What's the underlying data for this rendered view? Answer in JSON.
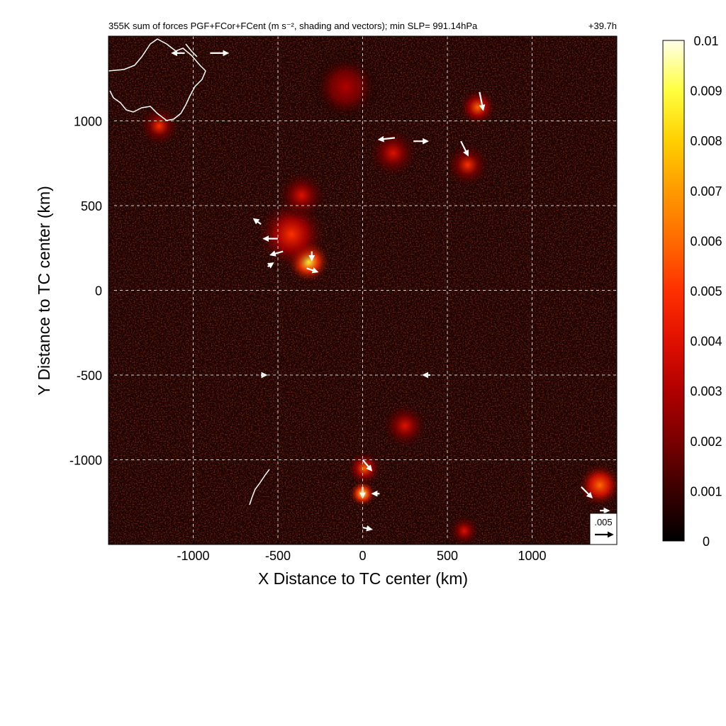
{
  "chart_data": {
    "type": "heatmap",
    "title": "355K sum of forces PGF+FCor+FCent (m s⁻², shading and vectors); min SLP= 991.14hPa",
    "time_label": "+39.7h",
    "xlabel": "X Distance to TC center (km)",
    "ylabel": "Y Distance to TC center (km)",
    "xlim": [
      -1500,
      1500
    ],
    "ylim": [
      -1500,
      1500
    ],
    "x_ticks": [
      -1000,
      -500,
      0,
      500,
      1000
    ],
    "y_ticks": [
      -1000,
      -500,
      0,
      500,
      1000
    ],
    "x_tick_labels": [
      "-1000",
      "-500",
      "0",
      "500",
      "1000"
    ],
    "y_tick_labels": [
      "-1000",
      "-500",
      "0",
      "500",
      "1000"
    ],
    "grid": "dashed",
    "colorbar": {
      "range": [
        0,
        0.01
      ],
      "tick_values": [
        0,
        0.001,
        0.002,
        0.003,
        0.004,
        0.005,
        0.006,
        0.007,
        0.008,
        0.009,
        0.01
      ],
      "tick_labels": [
        "0",
        "0.001",
        "0.002",
        "0.003",
        "0.004",
        "0.005",
        "0.006",
        "0.007",
        "0.008",
        "0.009",
        "0.01"
      ],
      "colors": [
        "#000000",
        "#3a0000",
        "#7a0000",
        "#b00000",
        "#e01000",
        "#ff3000",
        "#ff6a00",
        "#ff9a00",
        "#ffd000",
        "#ffff40",
        "#ffffe8"
      ]
    },
    "reference_vector": {
      "label": ".005",
      "value": 0.005
    },
    "hotspots": [
      {
        "x": -320,
        "y": 170,
        "intensity": 0.0085,
        "radius_km": 130
      },
      {
        "x": -420,
        "y": 330,
        "intensity": 0.005,
        "radius_km": 200
      },
      {
        "x": -360,
        "y": 560,
        "intensity": 0.004,
        "radius_km": 140
      },
      {
        "x": 0,
        "y": -1200,
        "intensity": 0.0085,
        "radius_km": 80
      },
      {
        "x": 10,
        "y": -1050,
        "intensity": 0.006,
        "radius_km": 100
      },
      {
        "x": 680,
        "y": 1080,
        "intensity": 0.006,
        "radius_km": 110
      },
      {
        "x": 620,
        "y": 740,
        "intensity": 0.0045,
        "radius_km": 130
      },
      {
        "x": 180,
        "y": 810,
        "intensity": 0.004,
        "radius_km": 140
      },
      {
        "x": 1400,
        "y": -1150,
        "intensity": 0.0065,
        "radius_km": 130
      },
      {
        "x": -1200,
        "y": 970,
        "intensity": 0.0045,
        "radius_km": 120
      },
      {
        "x": 250,
        "y": -800,
        "intensity": 0.0035,
        "radius_km": 130
      },
      {
        "x": 600,
        "y": -1420,
        "intensity": 0.004,
        "radius_km": 90
      },
      {
        "x": -100,
        "y": 1200,
        "intensity": 0.003,
        "radius_km": 200
      }
    ],
    "vectors": [
      {
        "x": -900,
        "y": 1400,
        "u": 0.005,
        "v": 0.0
      },
      {
        "x": -1050,
        "y": 1400,
        "u": -0.0035,
        "v": 0.0
      },
      {
        "x": 190,
        "y": 900,
        "u": -0.0045,
        "v": -0.0005
      },
      {
        "x": 300,
        "y": 880,
        "u": 0.004,
        "v": 0.0
      },
      {
        "x": 580,
        "y": 880,
        "u": 0.002,
        "v": -0.004
      },
      {
        "x": 690,
        "y": 1170,
        "u": 0.001,
        "v": -0.005
      },
      {
        "x": -500,
        "y": 305,
        "u": -0.004,
        "v": 0.0
      },
      {
        "x": -470,
        "y": 230,
        "u": -0.0035,
        "v": -0.001
      },
      {
        "x": -600,
        "y": 390,
        "u": -0.002,
        "v": 0.0015
      },
      {
        "x": -300,
        "y": 230,
        "u": 0.0,
        "v": -0.0025
      },
      {
        "x": -330,
        "y": 130,
        "u": 0.003,
        "v": -0.001
      },
      {
        "x": -560,
        "y": 140,
        "u": 0.0015,
        "v": 0.001
      },
      {
        "x": 0,
        "y": -1160,
        "u": 0.0,
        "v": -0.003
      },
      {
        "x": 0,
        "y": -1000,
        "u": 0.0025,
        "v": -0.003
      },
      {
        "x": 1290,
        "y": -1160,
        "u": 0.003,
        "v": -0.003
      },
      {
        "x": 1400,
        "y": -1300,
        "u": 0.0025,
        "v": 0.0
      },
      {
        "x": 400,
        "y": -500,
        "u": -0.002,
        "v": 0.0
      },
      {
        "x": 100,
        "y": -1200,
        "u": -0.002,
        "v": 0.0
      },
      {
        "x": 0,
        "y": -1400,
        "u": 0.0025,
        "v": -0.0005
      },
      {
        "x": -600,
        "y": -500,
        "u": 0.0015,
        "v": 0.0
      }
    ]
  }
}
